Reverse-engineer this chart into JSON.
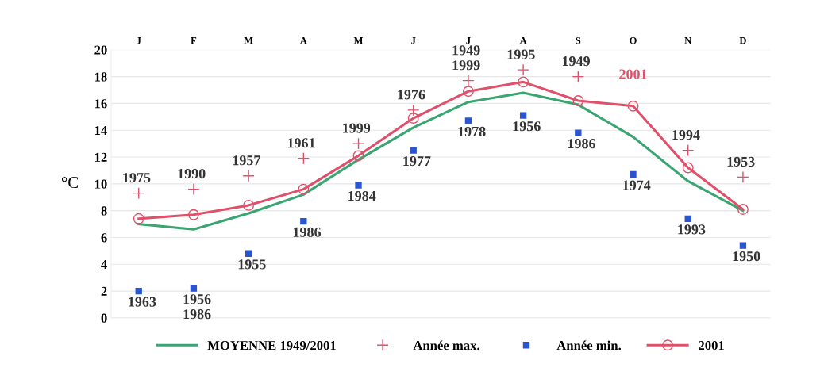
{
  "chart_data": {
    "type": "line",
    "categories": [
      "J",
      "F",
      "M",
      "A",
      "M",
      "J",
      "J",
      "A",
      "S",
      "O",
      "N",
      "D"
    ],
    "ylabel": "°C",
    "ylim": [
      0,
      20
    ],
    "yticks": [
      0,
      2,
      4,
      6,
      8,
      10,
      12,
      14,
      16,
      18,
      20
    ],
    "grid": "y",
    "legend": "bottom",
    "series": [
      {
        "name": "MOYENNE 1949/2001",
        "color": "#3aa571",
        "marker": "none",
        "values": [
          7.0,
          6.6,
          7.8,
          9.2,
          11.8,
          14.2,
          16.1,
          16.8,
          15.9,
          13.5,
          10.2,
          8.0
        ]
      },
      {
        "name": "Année max.",
        "type": "scatter",
        "color": "#e0506a",
        "marker": "cross",
        "values": [
          9.3,
          9.6,
          10.6,
          11.9,
          13.0,
          15.5,
          17.7,
          18.5,
          18.0,
          null,
          12.5,
          10.5
        ]
      },
      {
        "name": "Année min.",
        "type": "scatter",
        "color": "#2a55d0",
        "marker": "square",
        "values": [
          2.0,
          2.2,
          4.8,
          7.2,
          9.9,
          12.5,
          14.7,
          15.1,
          13.8,
          10.7,
          7.4,
          5.4
        ]
      },
      {
        "name": "2001",
        "color": "#e0506a",
        "marker": "circle",
        "values": [
          7.4,
          7.7,
          8.4,
          9.6,
          12.1,
          14.9,
          16.9,
          17.6,
          16.2,
          15.8,
          11.2,
          8.1
        ]
      }
    ],
    "annotations": [
      {
        "text": "1975",
        "x": "J",
        "y": 9.3
      },
      {
        "text": "1963",
        "x": "J",
        "y": 2.0
      },
      {
        "text": "1990",
        "x": "F",
        "y": 9.6
      },
      {
        "text": "1956\n1986",
        "x": "F",
        "y": 2.2
      },
      {
        "text": "1957",
        "x": "M",
        "y": 10.6
      },
      {
        "text": "1955",
        "x": "M",
        "y": 4.8
      },
      {
        "text": "1961",
        "x": "A",
        "y": 11.9
      },
      {
        "text": "1986",
        "x": "A",
        "y": 7.2
      },
      {
        "text": "1999",
        "y": 13.0
      },
      {
        "text": "1984",
        "y": 9.9
      },
      {
        "text": "1976",
        "y": 15.5
      },
      {
        "text": "1977",
        "y": 12.5
      },
      {
        "text": "1949\n1999",
        "y": 17.7
      },
      {
        "text": "1978",
        "y": 14.7
      },
      {
        "text": "1995",
        "y": 18.5
      },
      {
        "text": "1956",
        "y": 15.1
      },
      {
        "text": "1949",
        "x": "S",
        "y": 18.0
      },
      {
        "text": "1986",
        "x": "S",
        "y": 13.8
      },
      {
        "text": "2001",
        "x": "O",
        "y": 15.8
      },
      {
        "text": "1974",
        "x": "O",
        "y": 10.7
      },
      {
        "text": "1994",
        "x": "N",
        "y": 12.5
      },
      {
        "text": "1993",
        "x": "N",
        "y": 7.4
      },
      {
        "text": "1953",
        "x": "D",
        "y": 10.5
      },
      {
        "text": "1950",
        "x": "D",
        "y": 5.4
      }
    ]
  }
}
